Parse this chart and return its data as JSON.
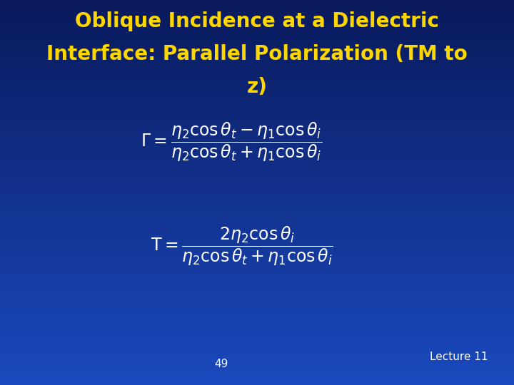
{
  "title_line1": "Oblique Incidence at a Dielectric",
  "title_line2": "Interface: Parallel Polarization (TM to",
  "title_line3": "z)",
  "title_color": "#FFD700",
  "title_fontsize": 20,
  "bg_color_top": "#0a1a5c",
  "bg_color_mid": "#1a4abf",
  "bg_color_bot": "#1a4abf",
  "formula1_gamma": "$\\Gamma = \\dfrac{\\eta_2 \\cos\\theta_t - \\eta_1 \\cos\\theta_i}{\\eta_2 \\cos\\theta_t + \\eta_1 \\cos\\theta_i}$",
  "formula2_T": "$\\mathrm{T} = \\dfrac{2\\eta_2 \\cos\\theta_i}{\\eta_2 \\cos\\theta_t + \\eta_1 \\cos\\theta_i}$",
  "formula_color": "white",
  "formula_fontsize": 17,
  "page_number": "49",
  "lecture_label": "Lecture 11",
  "footer_color": "white",
  "footer_fontsize": 11
}
